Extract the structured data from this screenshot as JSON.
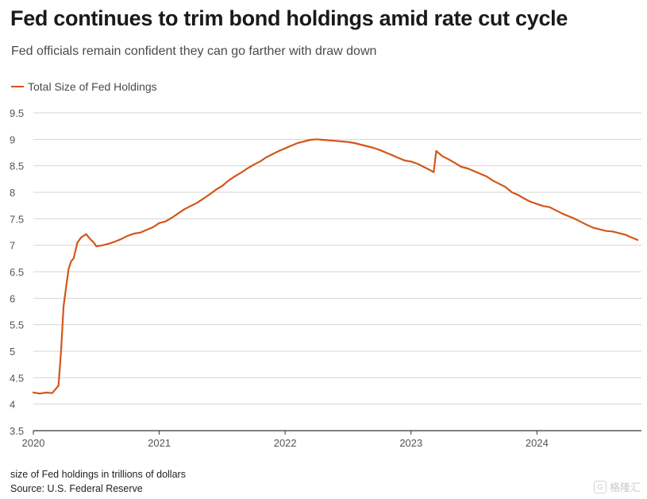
{
  "header": {
    "title": "Fed continues to trim bond holdings amid rate cut cycle",
    "subtitle": "Fed officials remain confident they can go farther with draw down"
  },
  "footer": {
    "note": "size of Fed holdings in trillions of dollars",
    "source": "Source: U.S. Federal Reserve",
    "watermark": "格隆汇"
  },
  "chart_data": {
    "type": "line",
    "title": "Fed continues to trim bond holdings amid rate cut cycle",
    "subtitle": "Fed officials remain confident they can go farther with draw down",
    "ylim": [
      3.5,
      9.5
    ],
    "y_ticks": [
      "3.5",
      "4",
      "4.5",
      "5",
      "5.5",
      "6",
      "6.5",
      "7",
      "7.5",
      "8",
      "8.5",
      "9",
      "9.5"
    ],
    "x_ticks": [
      {
        "label": "2020",
        "x": 2020.0
      },
      {
        "label": "2021",
        "x": 2021.0
      },
      {
        "label": "2022",
        "x": 2022.0
      },
      {
        "label": "2023",
        "x": 2023.0
      },
      {
        "label": "2024",
        "x": 2024.0
      }
    ],
    "xlim": [
      2020.0,
      2024.83
    ],
    "grid": "horizontal",
    "legend_position": "top-left",
    "color": "#d4561a",
    "series": [
      {
        "name": "Total Size of Fed Holdings",
        "x": [
          2020.0,
          2020.05,
          2020.1,
          2020.15,
          2020.2,
          2020.22,
          2020.24,
          2020.26,
          2020.28,
          2020.3,
          2020.32,
          2020.35,
          2020.38,
          2020.42,
          2020.45,
          2020.48,
          2020.5,
          2020.55,
          2020.6,
          2020.65,
          2020.7,
          2020.75,
          2020.8,
          2020.85,
          2020.9,
          2020.95,
          2021.0,
          2021.05,
          2021.1,
          2021.15,
          2021.2,
          2021.25,
          2021.3,
          2021.35,
          2021.4,
          2021.45,
          2021.5,
          2021.55,
          2021.6,
          2021.65,
          2021.7,
          2021.75,
          2021.8,
          2021.85,
          2021.9,
          2021.95,
          2022.0,
          2022.05,
          2022.1,
          2022.15,
          2022.2,
          2022.25,
          2022.3,
          2022.35,
          2022.4,
          2022.45,
          2022.5,
          2022.55,
          2022.6,
          2022.65,
          2022.7,
          2022.75,
          2022.8,
          2022.85,
          2022.9,
          2022.95,
          2023.0,
          2023.05,
          2023.1,
          2023.15,
          2023.18,
          2023.2,
          2023.25,
          2023.3,
          2023.35,
          2023.4,
          2023.45,
          2023.5,
          2023.55,
          2023.6,
          2023.65,
          2023.7,
          2023.75,
          2023.8,
          2023.85,
          2023.9,
          2023.95,
          2024.0,
          2024.05,
          2024.1,
          2024.15,
          2024.2,
          2024.25,
          2024.3,
          2024.35,
          2024.4,
          2024.45,
          2024.5,
          2024.55,
          2024.6,
          2024.65,
          2024.7,
          2024.75,
          2024.8
        ],
        "values": [
          4.22,
          4.2,
          4.22,
          4.21,
          4.35,
          5.0,
          5.85,
          6.2,
          6.55,
          6.7,
          6.75,
          7.05,
          7.15,
          7.21,
          7.12,
          7.05,
          6.98,
          7.0,
          7.03,
          7.07,
          7.12,
          7.18,
          7.22,
          7.24,
          7.29,
          7.34,
          7.42,
          7.45,
          7.52,
          7.6,
          7.68,
          7.74,
          7.8,
          7.88,
          7.96,
          8.05,
          8.12,
          8.22,
          8.3,
          8.37,
          8.45,
          8.52,
          8.58,
          8.66,
          8.72,
          8.78,
          8.83,
          8.88,
          8.93,
          8.96,
          8.99,
          9.0,
          8.99,
          8.98,
          8.97,
          8.96,
          8.95,
          8.93,
          8.9,
          8.87,
          8.84,
          8.8,
          8.75,
          8.7,
          8.65,
          8.6,
          8.58,
          8.54,
          8.48,
          8.42,
          8.38,
          8.78,
          8.68,
          8.62,
          8.55,
          8.48,
          8.45,
          8.4,
          8.35,
          8.3,
          8.22,
          8.16,
          8.1,
          8.0,
          7.95,
          7.88,
          7.82,
          7.78,
          7.74,
          7.72,
          7.66,
          7.6,
          7.55,
          7.5,
          7.44,
          7.38,
          7.33,
          7.3,
          7.27,
          7.26,
          7.23,
          7.2,
          7.15,
          7.1
        ]
      }
    ],
    "axis_color": "#555555",
    "grid_color": "#d6d6d6",
    "zero_line_color": "#333333"
  }
}
